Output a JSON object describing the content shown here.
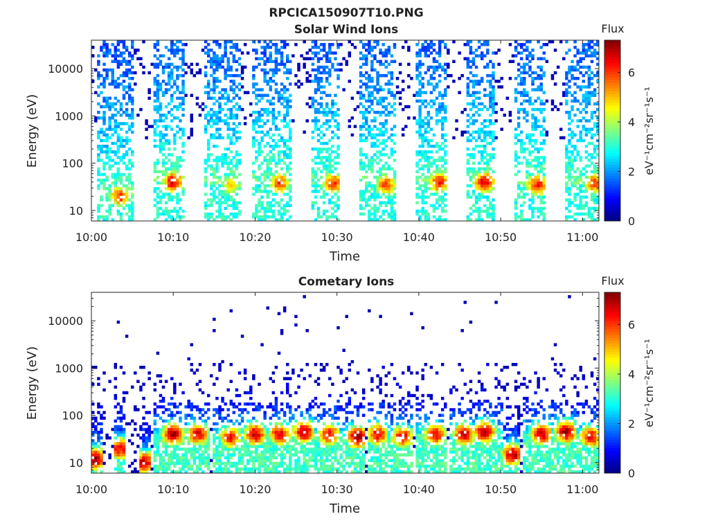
{
  "figure_title": "RPCICA150907T10.PNG",
  "chart_data": [
    {
      "type": "heatmap",
      "title": "Solar Wind Ions",
      "xlabel": "Time",
      "ylabel": "Energy (eV)",
      "x_ticks": [
        "10:00",
        "10:10",
        "10:20",
        "10:30",
        "10:40",
        "10:50",
        "11:00"
      ],
      "y_ticks": [
        "10",
        "100",
        "1000",
        "10000"
      ],
      "y_scale": "log",
      "ylim": [
        6,
        40000
      ],
      "xlim": [
        "10:00",
        "11:02"
      ],
      "grid": false,
      "colorbar": {
        "title": "Flux",
        "label": "eV⁻¹cm⁻²sr⁻¹s⁻¹",
        "ticks": [
          "0",
          "2",
          "4",
          "6"
        ],
        "range": [
          0,
          7.3
        ],
        "colormap": "jet"
      },
      "bursts": [
        {
          "start": "10:01",
          "end": "10:05",
          "peak_time": "10:03.5",
          "peak_energy_ev": 20,
          "peak_flux": 6.0
        },
        {
          "start": "10:08",
          "end": "10:11",
          "peak_time": "10:10",
          "peak_energy_ev": 40,
          "peak_flux": 6.5
        },
        {
          "start": "10:14",
          "end": "10:18",
          "peak_time": "10:17",
          "peak_energy_ev": 35,
          "peak_flux": 5.0
        },
        {
          "start": "10:20",
          "end": "10:24",
          "peak_time": "10:23",
          "peak_energy_ev": 38,
          "peak_flux": 5.8
        },
        {
          "start": "10:27",
          "end": "10:30",
          "peak_time": "10:29.5",
          "peak_energy_ev": 38,
          "peak_flux": 6.0
        },
        {
          "start": "10:33",
          "end": "10:37",
          "peak_time": "10:36",
          "peak_energy_ev": 35,
          "peak_flux": 5.8
        },
        {
          "start": "10:40",
          "end": "10:43",
          "peak_time": "10:42.5",
          "peak_energy_ev": 40,
          "peak_flux": 6.2
        },
        {
          "start": "10:46",
          "end": "10:49",
          "peak_time": "10:48",
          "peak_energy_ev": 40,
          "peak_flux": 6.5
        },
        {
          "start": "10:52",
          "end": "10:55",
          "peak_time": "10:54.5",
          "peak_energy_ev": 35,
          "peak_flux": 6.2
        },
        {
          "start": "10:58",
          "end": "11:02",
          "peak_time": "11:01.5",
          "peak_energy_ev": 38,
          "peak_flux": 6.0
        }
      ]
    },
    {
      "type": "heatmap",
      "title": "Cometary Ions",
      "xlabel": "Time",
      "ylabel": "Energy (eV)",
      "x_ticks": [
        "10:00",
        "10:10",
        "10:20",
        "10:30",
        "10:40",
        "10:50",
        "11:00"
      ],
      "y_ticks": [
        "10",
        "100",
        "1000",
        "10000"
      ],
      "y_scale": "log",
      "ylim": [
        6,
        40000
      ],
      "xlim": [
        "10:00",
        "11:02"
      ],
      "grid": false,
      "colorbar": {
        "title": "Flux",
        "label": "eV⁻¹cm⁻²sr⁻¹s⁻¹",
        "ticks": [
          "0",
          "2",
          "4",
          "6"
        ],
        "range": [
          0,
          7.3
        ],
        "colormap": "jet"
      },
      "bursts": [
        {
          "start": "10:00",
          "end": "10:01",
          "peak_time": "10:00.5",
          "peak_energy_ev": 12,
          "peak_flux": 7.0
        },
        {
          "start": "10:03",
          "end": "10:04",
          "peak_time": "10:03.5",
          "peak_energy_ev": 20,
          "peak_flux": 6.5
        },
        {
          "start": "10:06",
          "end": "10:07",
          "peak_time": "10:06.5",
          "peak_energy_ev": 10,
          "peak_flux": 6.8
        },
        {
          "start": "10:08",
          "end": "10:11",
          "peak_time": "10:10",
          "peak_energy_ev": 40,
          "peak_flux": 7.0
        },
        {
          "start": "10:11",
          "end": "10:14",
          "peak_time": "10:13",
          "peak_energy_ev": 40,
          "peak_flux": 6.5
        },
        {
          "start": "10:15",
          "end": "10:18",
          "peak_time": "10:17",
          "peak_energy_ev": 35,
          "peak_flux": 6.3
        },
        {
          "start": "10:18",
          "end": "10:21",
          "peak_time": "10:20",
          "peak_energy_ev": 40,
          "peak_flux": 6.8
        },
        {
          "start": "10:21",
          "end": "10:24",
          "peak_time": "10:23",
          "peak_energy_ev": 40,
          "peak_flux": 6.5
        },
        {
          "start": "10:24",
          "end": "10:27",
          "peak_time": "10:26",
          "peak_energy_ev": 45,
          "peak_flux": 7.0
        },
        {
          "start": "10:27",
          "end": "10:30",
          "peak_time": "10:29",
          "peak_energy_ev": 40,
          "peak_flux": 6.5
        },
        {
          "start": "10:30",
          "end": "10:33",
          "peak_time": "10:32.5",
          "peak_energy_ev": 35,
          "peak_flux": 7.0
        },
        {
          "start": "10:34",
          "end": "10:36",
          "peak_time": "10:35",
          "peak_energy_ev": 40,
          "peak_flux": 6.5
        },
        {
          "start": "10:36",
          "end": "10:39",
          "peak_time": "10:38",
          "peak_energy_ev": 35,
          "peak_flux": 6.5
        },
        {
          "start": "10:40",
          "end": "10:43",
          "peak_time": "10:42",
          "peak_energy_ev": 40,
          "peak_flux": 6.5
        },
        {
          "start": "10:44",
          "end": "10:47",
          "peak_time": "10:45.5",
          "peak_energy_ev": 40,
          "peak_flux": 6.8
        },
        {
          "start": "10:47",
          "end": "10:50",
          "peak_time": "10:48",
          "peak_energy_ev": 45,
          "peak_flux": 7.0
        },
        {
          "start": "10:50",
          "end": "10:52",
          "peak_time": "10:51.5",
          "peak_energy_ev": 15,
          "peak_flux": 7.0
        },
        {
          "start": "10:53",
          "end": "10:56",
          "peak_time": "10:55",
          "peak_energy_ev": 40,
          "peak_flux": 6.8
        },
        {
          "start": "10:56",
          "end": "10:59",
          "peak_time": "10:58",
          "peak_energy_ev": 45,
          "peak_flux": 7.0
        },
        {
          "start": "10:59",
          "end": "11:02",
          "peak_time": "11:01",
          "peak_energy_ev": 35,
          "peak_flux": 6.5
        }
      ]
    }
  ]
}
